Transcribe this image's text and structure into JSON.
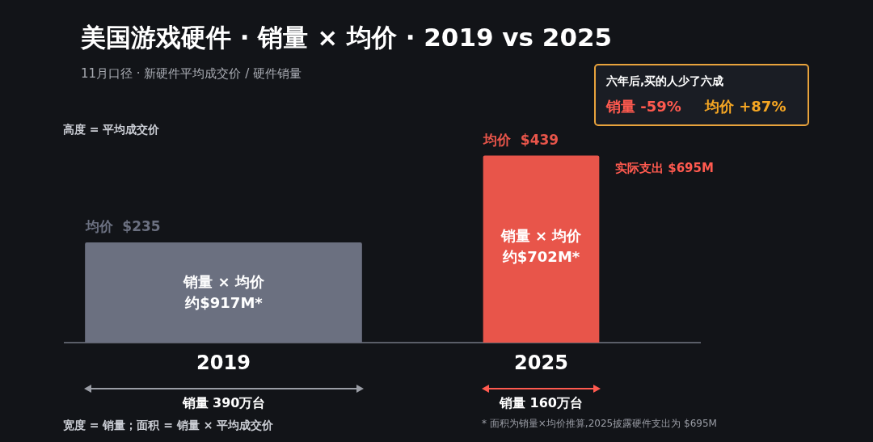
{
  "chart_data": {
    "type": "bar",
    "title": "美国游戏硬件 · 销量 × 均价 · 2019 vs 2025",
    "subtitle": "11月口径 · 新硬件平均成交价 / 硬件销量",
    "categories": [
      "2019",
      "2025"
    ],
    "values": [
      235,
      439
    ],
    "colors": [
      "#6b7080",
      "#e8554a"
    ],
    "value_labels": [
      "均价  $235",
      "均价  $439"
    ],
    "legend": false,
    "annotations": [
      "高度 = 平均成交价",
      "六年后,买的人少了六成",
      "销量  -59%",
      "均价  +87%",
      "实际支出 $695M",
      "销量 × 均价",
      "约$917M*",
      "销量 × 均价",
      "约$702M*",
      "销量 390万台",
      "销量 160万台",
      "宽度 = 销量；面积 = 销量 × 平均成交价",
      "* 面积为销量×均价推算,2025披露硬件支出为 $695M"
    ]
  }
}
